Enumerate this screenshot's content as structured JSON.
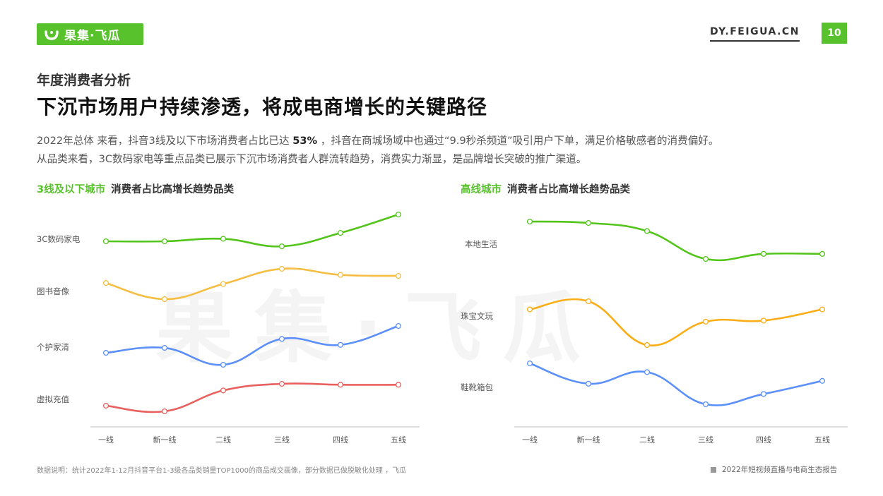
{
  "header": {
    "logo_text": "果集·飞瓜",
    "site_url": "DY.FEIGUA.CN",
    "page_number": "10",
    "brand_color": "#58c22c"
  },
  "section_title": "年度消费者分析",
  "main_title": "下沉市场用户持续渗透，将成电商增长的关键路径",
  "description": {
    "line1_prefix": "2022年总体  来看，抖音3线及以下市场消费者占比已达 ",
    "line1_highlight": "53%",
    "line1_suffix": " ，抖音在商城场域中也通过“9.9秒杀频道”吸引用户下单，满足价格敏感者的消费偏好。",
    "line2": "从品类来看，3C数码家电等重点品类已展示下沉市场消费者人群流转趋势，消费实力渐显，是品牌增长突破的推广渠道。"
  },
  "watermark": "果集·飞瓜",
  "chart_data": [
    {
      "type": "line",
      "title_highlight": "3线及以下城市",
      "title": "消费者占比高增长趋势品类",
      "categories": [
        "一线",
        "新一线",
        "二线",
        "三线",
        "四线",
        "五线"
      ],
      "y_axis_labels_shown": false,
      "grid": false,
      "series": [
        {
          "name": "3C数码家电",
          "color": "#52c41a",
          "values": [
            84,
            84,
            85.5,
            81,
            89,
            100
          ]
        },
        {
          "name": "图书音像",
          "color": "#f5bd41",
          "values": [
            63,
            55,
            62.5,
            70,
            67,
            66.5
          ]
        },
        {
          "name": "个护家清",
          "color": "#5b8ff9",
          "values": [
            27,
            29.5,
            21,
            34,
            31,
            40.5
          ]
        },
        {
          "name": "虚拟充值",
          "color": "#e8615e",
          "values": [
            1,
            -2,
            9,
            12.5,
            12,
            12
          ]
        }
      ]
    },
    {
      "type": "line",
      "title_highlight": "高线城市",
      "title": "消费者占比高增长趋势品类",
      "categories": [
        "一线",
        "新一线",
        "二线",
        "三线",
        "四线",
        "五线"
      ],
      "y_axis_labels_shown": false,
      "grid": false,
      "series": [
        {
          "name": "本地生活",
          "color": "#52c41a",
          "values": [
            100,
            99.3,
            95.3,
            81.5,
            84,
            84
          ]
        },
        {
          "name": "珠宝文玩",
          "color": "#faad14",
          "values": [
            59,
            63,
            41.5,
            53,
            53.5,
            59
          ]
        },
        {
          "name": "鞋靴箱包",
          "color": "#5b8ff9",
          "values": [
            34,
            24.7,
            30,
            15.3,
            20,
            26
          ]
        }
      ]
    }
  ],
  "footnote": "数据说明：统计2022年1-12月抖音平台1-3级各品类销量TOP1000的商品成交画像，部分数据已做脱敏化处理 ，飞瓜",
  "footer_right": "2022年短视频直播与电商生态报告"
}
